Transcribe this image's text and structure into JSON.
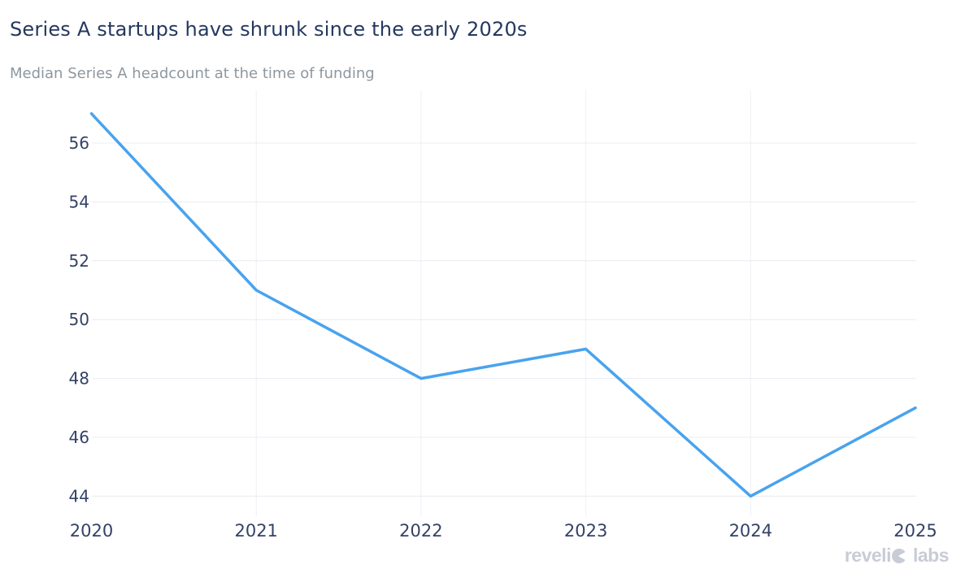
{
  "header": {
    "title": "Series A startups have shrunk since the early 2020s",
    "subtitle": "Median Series A headcount at the time of funding"
  },
  "footer": {
    "brand_name": "revelio labs",
    "brand_prefix": "reveli",
    "brand_suffix": "labs"
  },
  "colors": {
    "background": "#ffffff",
    "title": "#24385f",
    "subtitle": "#8e979f",
    "axis_label": "#334267",
    "line": "#48a3ee",
    "grid": "#e9ecf2",
    "grid_vertical": "#eef0f5",
    "logo": "#c8ccd5"
  },
  "chart_data": {
    "type": "line",
    "title": "Series A startups have shrunk since the early 2020s",
    "subtitle": "Median Series A headcount at the time of funding",
    "x": [
      2020,
      2021,
      2022,
      2023,
      2024,
      2025
    ],
    "series": [
      {
        "name": "Median Series A headcount at the time of funding",
        "values": [
          57,
          51,
          48,
          49,
          44,
          47
        ]
      }
    ],
    "xlabel": "",
    "ylabel": "",
    "x_ticks": [
      2020,
      2021,
      2022,
      2023,
      2024,
      2025
    ],
    "y_ticks": [
      44,
      46,
      48,
      50,
      52,
      54,
      56
    ],
    "x_gridline_years": [
      2021,
      2022,
      2023,
      2024
    ],
    "xlim": [
      2020,
      2025
    ],
    "ylim": [
      43.2,
      57.8
    ],
    "grid": "on",
    "legend": "none"
  }
}
